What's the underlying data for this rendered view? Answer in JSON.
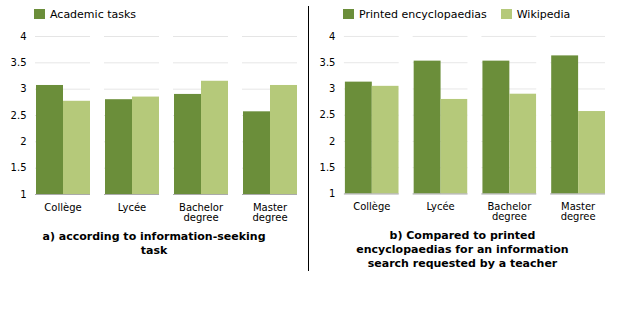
{
  "chart_data": [
    {
      "type": "bar",
      "title": "a) according to information-seeking\ntask",
      "categories": [
        "Collège",
        "Lycée",
        "Bachelor\ndegree",
        "Master\ndegree"
      ],
      "series": [
        {
          "name": "Academic tasks",
          "color": "#6b8e3a",
          "values": [
            3.07,
            2.8,
            2.9,
            2.57
          ]
        },
        {
          "color": "#b5c97a",
          "values": [
            2.77,
            2.85,
            3.15,
            3.07
          ]
        }
      ],
      "ylim": [
        1,
        4
      ],
      "yticks": [
        1,
        1.5,
        2,
        2.5,
        3,
        3.5,
        4
      ],
      "grid": true,
      "legend": "upper left"
    },
    {
      "type": "bar",
      "title": "b) Compared to printed\nencyclopaedias for an information\nsearch requested by a teacher",
      "categories": [
        "Collège",
        "Lycée",
        "Bachelor\ndegree",
        "Master\ndegree"
      ],
      "series": [
        {
          "name": "Printed encyclopaedias",
          "color": "#6b8e3a",
          "values": [
            3.13,
            3.53,
            3.53,
            3.63
          ]
        },
        {
          "name": "Wikipedia",
          "color": "#b5c97a",
          "values": [
            3.05,
            2.8,
            2.9,
            2.57
          ]
        }
      ],
      "ylim": [
        1,
        4
      ],
      "yticks": [
        1,
        1.5,
        2,
        2.5,
        3,
        3.5,
        4
      ],
      "grid": true,
      "legend": "upper left"
    }
  ]
}
